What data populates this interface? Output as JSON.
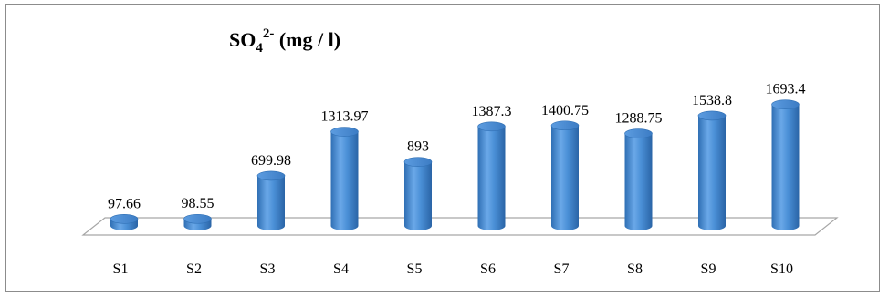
{
  "chart_data": {
    "type": "bar",
    "title_main": "SO",
    "title_sub": "4",
    "title_sup": "2-",
    "title_units": " (mg / l)",
    "categories": [
      "S1",
      "S2",
      "S3",
      "S4",
      "S5",
      "S6",
      "S7",
      "S8",
      "S9",
      "S10"
    ],
    "values": [
      97.66,
      98.55,
      699.98,
      1313.97,
      893,
      1387.3,
      1400.75,
      1288.75,
      1538.8,
      1693.4
    ],
    "data_labels": [
      "97.66",
      "98.55",
      "699.98",
      "1313.97",
      "893",
      "1387.3",
      "1400.75",
      "1288.75",
      "1538.8",
      "1693.4"
    ],
    "ylim": [
      0,
      1800
    ],
    "grid": false,
    "legend": "none",
    "bar_style": "3d-cylinder",
    "colors": {
      "bar": "#4a8fd6",
      "bar_dark": "#2f6fb4",
      "bar_light": "#8fc0f0",
      "floor_stroke": "#a6a6a6"
    }
  }
}
